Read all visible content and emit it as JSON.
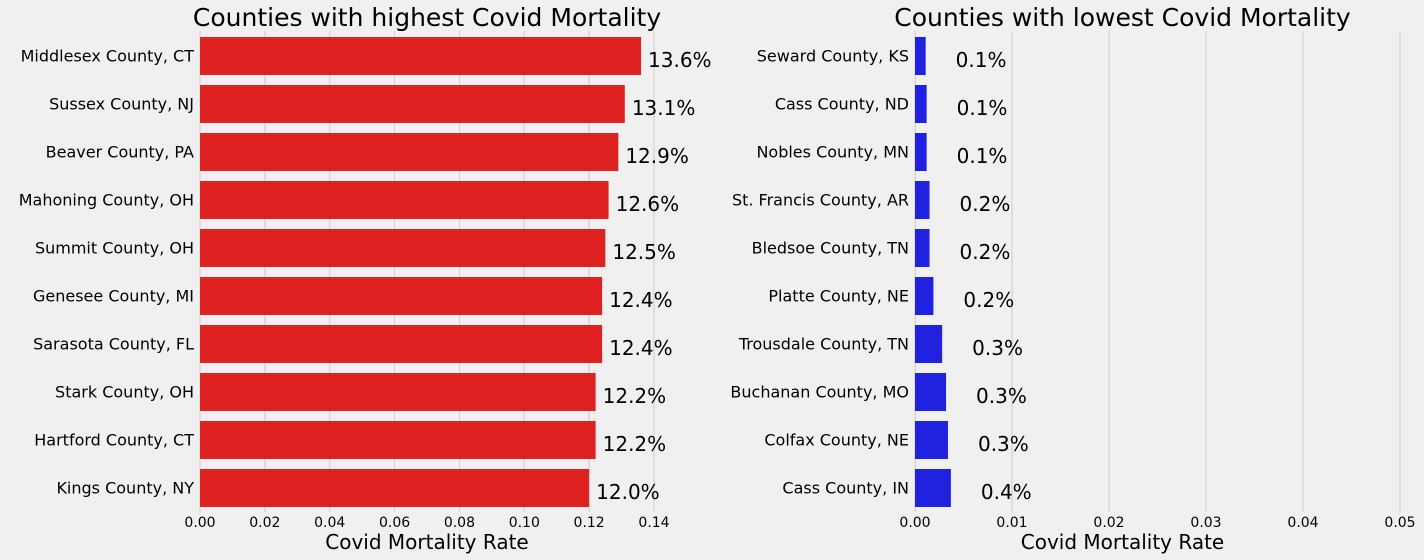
{
  "chart_data": [
    {
      "type": "bar",
      "orientation": "horizontal",
      "title": "Counties with highest Covid Mortality",
      "xlabel": "Covid Mortality Rate",
      "ylabel": "",
      "xlim": [
        0,
        0.14
      ],
      "xticks": [
        "0.00",
        "0.02",
        "0.04",
        "0.06",
        "0.08",
        "0.10",
        "0.12",
        "0.14"
      ],
      "xtick_values": [
        0,
        0.02,
        0.04,
        0.06,
        0.08,
        0.1,
        0.12,
        0.14
      ],
      "bar_color": "#de2121",
      "grid": true,
      "categories": [
        "Middlesex County, CT",
        "Sussex County, NJ",
        "Beaver County, PA",
        "Mahoning County, OH",
        "Summit County, OH",
        "Genesee County, MI",
        "Sarasota County, FL",
        "Stark County, OH",
        "Hartford County, CT",
        "Kings County, NY"
      ],
      "values": [
        0.136,
        0.131,
        0.129,
        0.126,
        0.125,
        0.124,
        0.124,
        0.122,
        0.122,
        0.12
      ],
      "data_labels": [
        "13.6%",
        "13.1%",
        "12.9%",
        "12.6%",
        "12.5%",
        "12.4%",
        "12.4%",
        "12.2%",
        "12.2%",
        "12.0%"
      ]
    },
    {
      "type": "bar",
      "orientation": "horizontal",
      "title": "Counties with lowest Covid Mortality",
      "xlabel": "Covid Mortality Rate",
      "ylabel": "",
      "xlim": [
        0,
        0.05
      ],
      "xticks": [
        "0.00",
        "0.01",
        "0.02",
        "0.03",
        "0.04",
        "0.05"
      ],
      "xtick_values": [
        0,
        0.01,
        0.02,
        0.03,
        0.04,
        0.05
      ],
      "bar_color": "#2121e0",
      "grid": true,
      "categories": [
        "Seward County, KS",
        "Cass County, ND",
        "Nobles County, MN",
        "St. Francis County, AR",
        "Bledsoe County, TN",
        "Platte County, NE",
        "Trousdale County, TN",
        "Buchanan County, MO",
        "Colfax County, NE",
        "Cass County, IN"
      ],
      "values": [
        0.0011,
        0.0012,
        0.0012,
        0.0015,
        0.0015,
        0.0019,
        0.0028,
        0.0032,
        0.0034,
        0.0037
      ],
      "data_labels": [
        "0.1%",
        "0.1%",
        "0.1%",
        "0.2%",
        "0.2%",
        "0.2%",
        "0.3%",
        "0.3%",
        "0.3%",
        "0.4%"
      ]
    }
  ]
}
